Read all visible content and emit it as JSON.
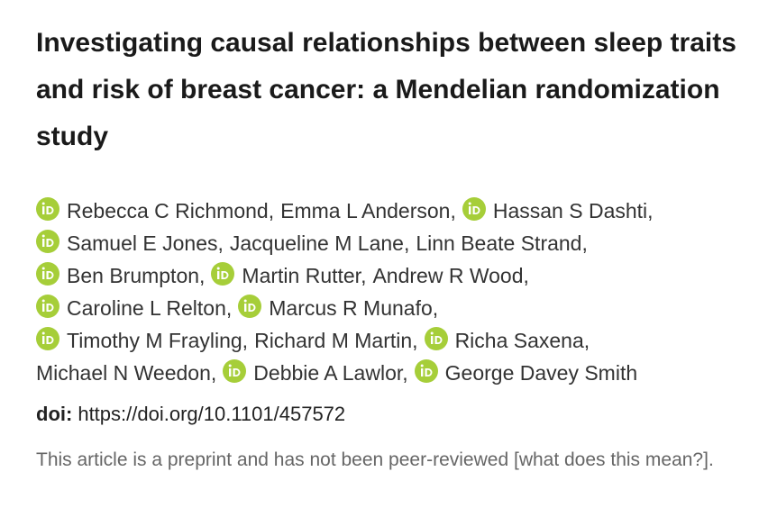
{
  "title": "Investigating causal relationships between sleep traits and risk of breast cancer: a Mendelian randomization study",
  "authors": {
    "lines": [
      [
        {
          "name": "Rebecca C Richmond,",
          "orcid": true
        },
        {
          "name": "Emma L Anderson,",
          "orcid": false
        },
        {
          "name": "Hassan S Dashti,",
          "orcid": true
        }
      ],
      [
        {
          "name": "Samuel E Jones,",
          "orcid": true
        },
        {
          "name": "Jacqueline M Lane,",
          "orcid": false
        },
        {
          "name": "Linn Beate Strand,",
          "orcid": false
        }
      ],
      [
        {
          "name": "Ben Brumpton,",
          "orcid": true
        },
        {
          "name": "Martin Rutter,",
          "orcid": true
        },
        {
          "name": "Andrew R Wood,",
          "orcid": false
        }
      ],
      [
        {
          "name": "Caroline L Relton,",
          "orcid": true
        },
        {
          "name": "Marcus R Munafo,",
          "orcid": true
        }
      ],
      [
        {
          "name": "Timothy M Frayling,",
          "orcid": true
        },
        {
          "name": "Richard M Martin,",
          "orcid": false
        },
        {
          "name": "Richa Saxena,",
          "orcid": true
        }
      ],
      [
        {
          "name": "Michael N Weedon,",
          "orcid": false
        },
        {
          "name": "Debbie A Lawlor,",
          "orcid": true
        },
        {
          "name": "George Davey Smith",
          "orcid": true
        }
      ]
    ]
  },
  "doi": {
    "label": "doi:",
    "url": "https://doi.org/10.1101/457572"
  },
  "notice": {
    "text": "This article is a preprint and has not been peer-reviewed",
    "open": "[",
    "link": "what does this mean?",
    "close": "]."
  }
}
